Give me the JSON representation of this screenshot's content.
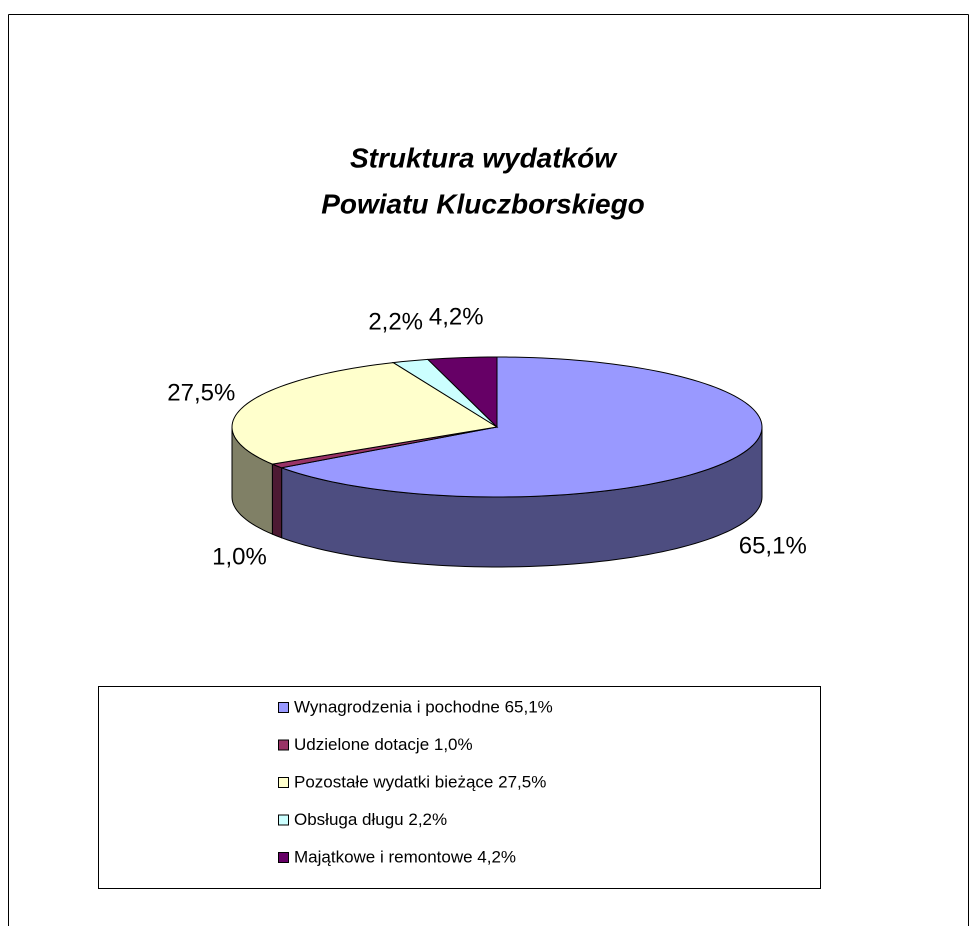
{
  "chart_data": {
    "type": "pie3d",
    "title": [
      "Struktura wydatków",
      "Powiatu Kluczborskiego"
    ],
    "categories": [
      "Wynagrodzenia i pochodne  65,1%",
      "Udzielone dotacje 1,0%",
      "Pozostałe wydatki bieżące 27,5%",
      "Obsługa długu 2,2%",
      "Majątkowe i remontowe 4,2%"
    ],
    "values": [
      65.1,
      1.0,
      27.5,
      2.2,
      4.2
    ],
    "value_labels": [
      "65,1%",
      "1,0%",
      "27,5%",
      "2,2%",
      "4,2%"
    ],
    "colors": [
      "#9999ff",
      "#993366",
      "#ffffcc",
      "#ccffff",
      "#660066"
    ],
    "legend": "bottom"
  }
}
